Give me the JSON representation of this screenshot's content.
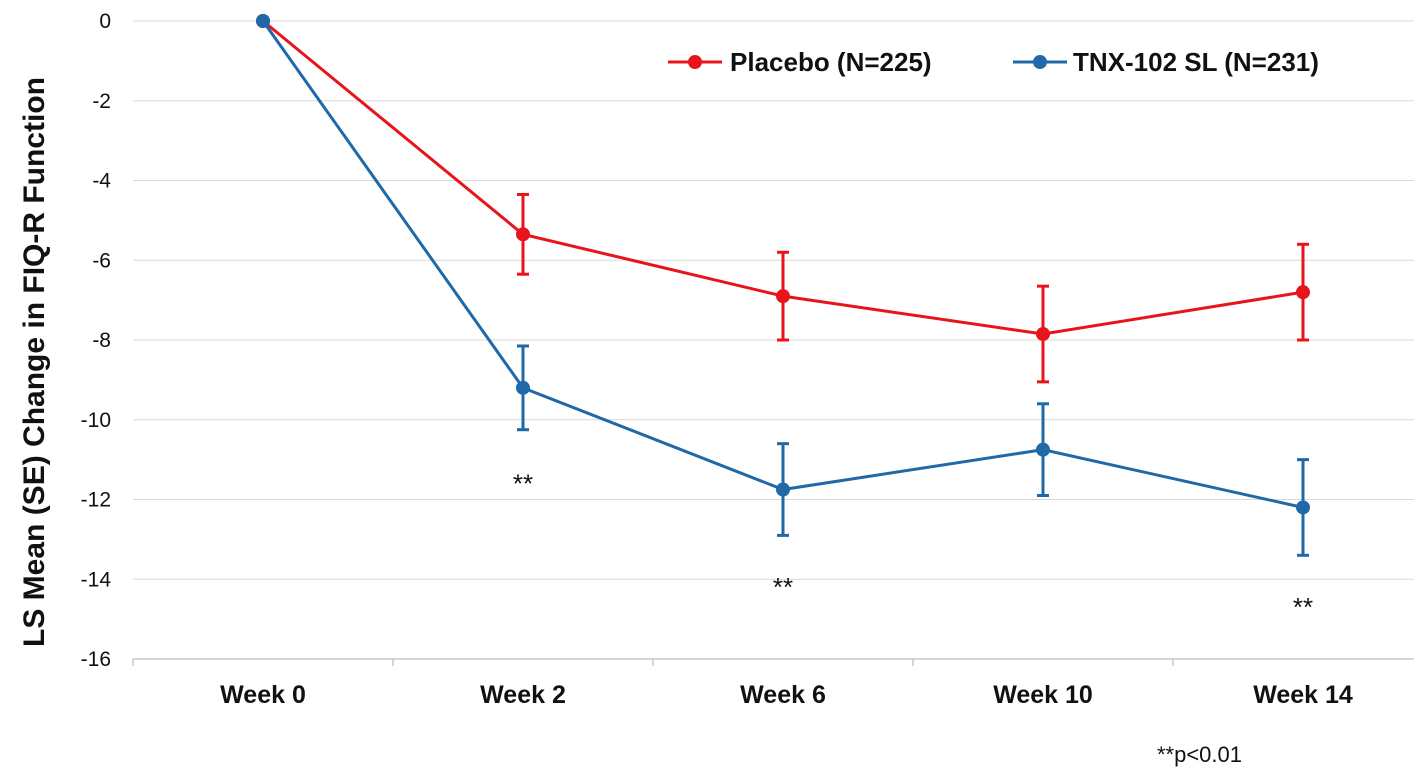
{
  "chart_data": {
    "type": "line",
    "categories": [
      "Week 0",
      "Week 2",
      "Week 6",
      "Week 10",
      "Week 14"
    ],
    "ylabel": "LS Mean (SE) Change in  FIQ-R Function",
    "xlabel": "",
    "title": "",
    "ylim": [
      -16,
      0
    ],
    "yticks": [
      0,
      -2,
      -4,
      -6,
      -8,
      -10,
      -12,
      -14,
      -16
    ],
    "grid": true,
    "legend_position": "top-right",
    "series": [
      {
        "name": "Placebo (N=225)",
        "color": "#e8141c",
        "values": [
          0,
          -5.35,
          -6.9,
          -7.85,
          -6.8
        ],
        "se": [
          0,
          1.0,
          1.1,
          1.2,
          1.2
        ]
      },
      {
        "name": "TNX-102 SL (N=231)",
        "color": "#1f69a8",
        "values": [
          0,
          -9.2,
          -11.75,
          -10.75,
          -12.2
        ],
        "se": [
          0,
          1.05,
          1.15,
          1.15,
          1.2
        ]
      }
    ],
    "significance": [
      {
        "category": "Week 2",
        "label": "**",
        "y": -11.6
      },
      {
        "category": "Week 6",
        "label": "**",
        "y": -14.2
      },
      {
        "category": "Week 14",
        "label": "**",
        "y": -14.7
      }
    ],
    "footnote": "**p<0.01"
  }
}
